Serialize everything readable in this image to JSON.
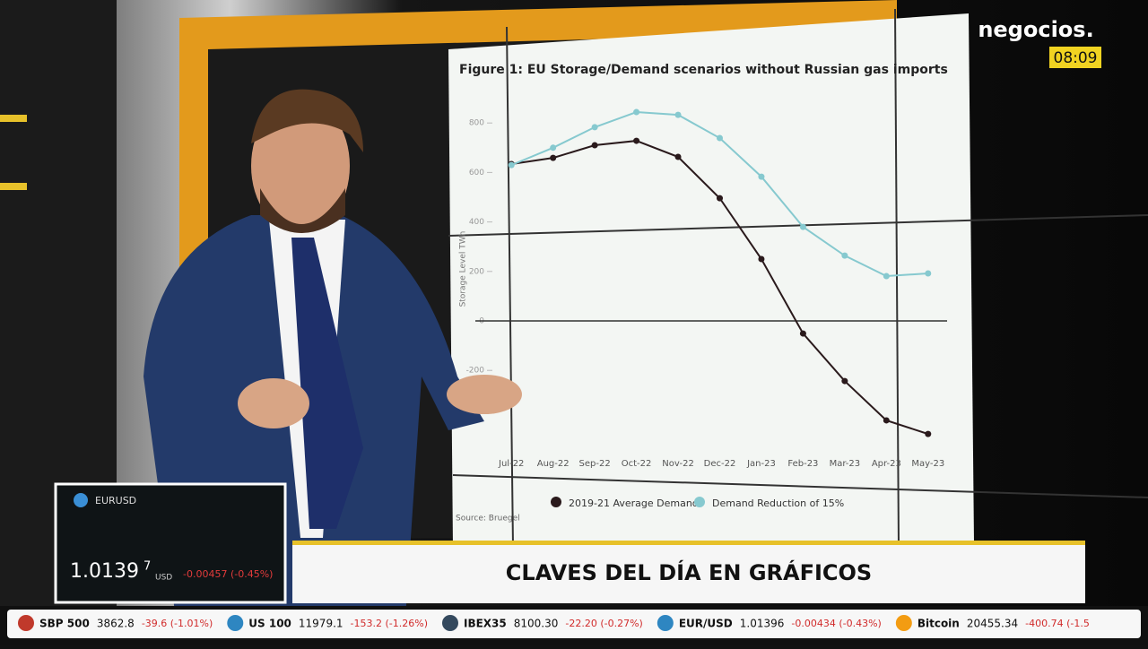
{
  "chart_data": {
    "type": "line",
    "title": "Figure 1: EU Storage/Demand scenarios without Russian gas imports",
    "y_label": "Storage Level TWh",
    "categories": [
      "Jul-22",
      "Aug-22",
      "Sep-22",
      "Oct-22",
      "Nov-22",
      "Dec-22",
      "Jan-23",
      "Feb-23",
      "Mar-23",
      "Apr-23",
      "May-23"
    ],
    "series": [
      {
        "name": "2019-21 Average Demand",
        "color": "#2a1a1c",
        "values": [
          634,
          659,
          710,
          728,
          663,
          496,
          250,
          -51,
          -243,
          -402,
          -457
        ]
      },
      {
        "name": "Demand Reduction of 15%",
        "color": "#86c9cf",
        "values": [
          630,
          700,
          783,
          844,
          833,
          739,
          583,
          380,
          264,
          181,
          192
        ]
      }
    ],
    "ylim": [
      -600,
      900
    ],
    "yticks": [
      -200,
      0,
      200,
      400,
      600,
      800
    ],
    "source": "Source: Bruegel"
  },
  "header": {
    "brand": "negocios.",
    "clock": "08:09"
  },
  "banner": "CLAVES DEL DÍA EN GRÁFICOS",
  "quote_box": {
    "symbol": "EURUSD",
    "price": "1.0139",
    "price_small": "7",
    "currency": "USD",
    "change": "-0.00457 (-0.45%)"
  },
  "ticker": [
    {
      "name": "SBP 500",
      "price": "3862.8",
      "change": "-39.6 (-1.01%)"
    },
    {
      "name": "US 100",
      "price": "11979.1",
      "change": "-153.2 (-1.26%)"
    },
    {
      "name": "IBEX35",
      "price": "8100.30",
      "change": "-22.20 (-0.27%)"
    },
    {
      "name": "EUR/USD",
      "price": "1.01396",
      "change": "-0.00434 (-0.43%)"
    },
    {
      "name": "Bitcoin",
      "price": "20455.34",
      "change": "-400.74 (-1.5"
    }
  ]
}
